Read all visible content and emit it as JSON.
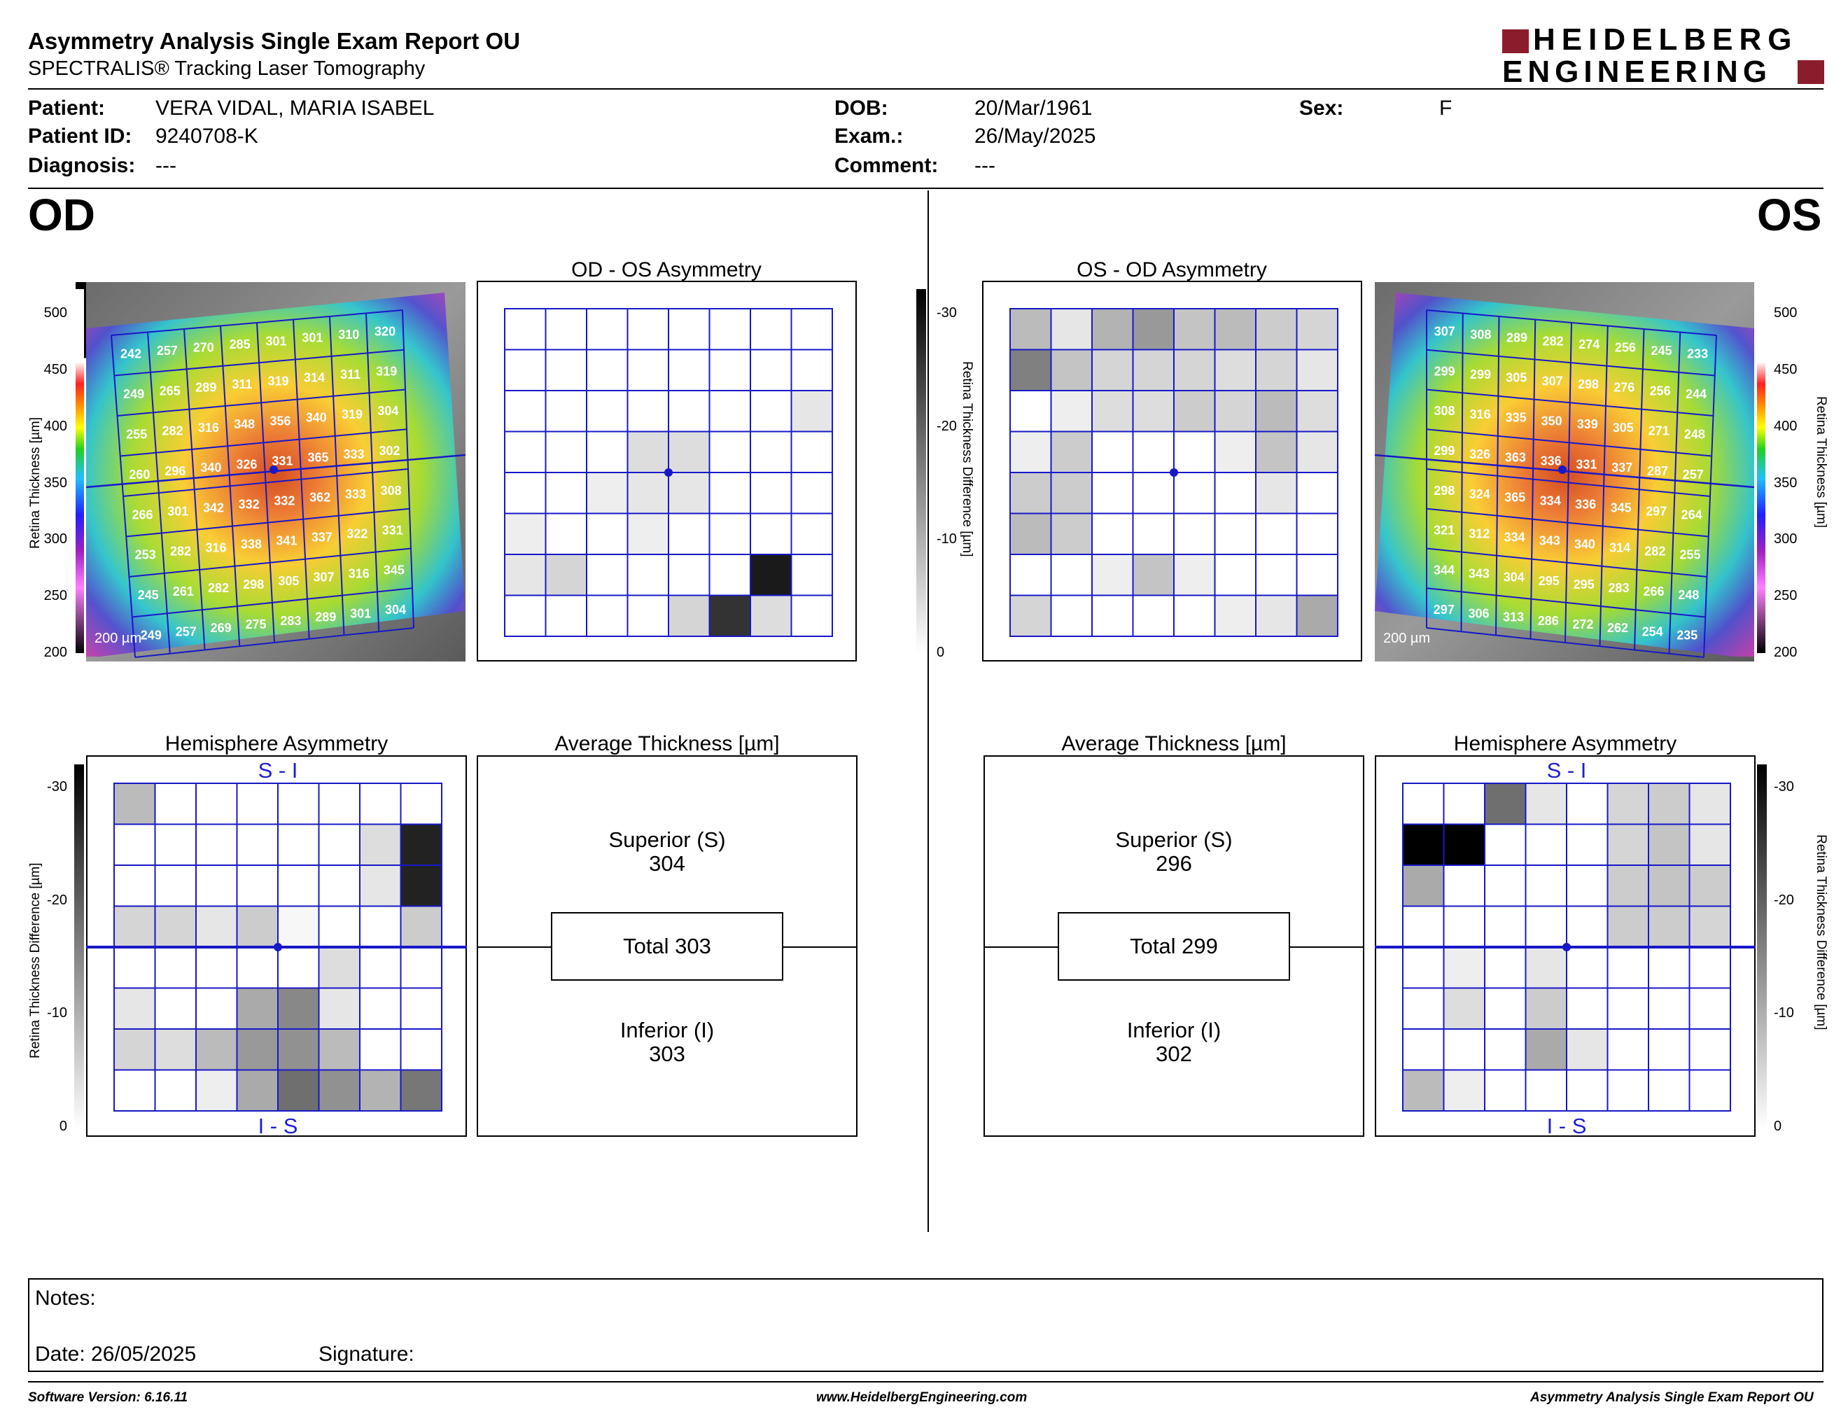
{
  "header": {
    "title": "Asymmetry Analysis Single Exam Report OU",
    "subtitle": "SPECTRALIS® Tracking Laser Tomography",
    "logo_line1": "HEIDELBERG",
    "logo_line2": "ENGINEERING",
    "logo_accent": "#8b1c2c"
  },
  "patient": {
    "patient_label": "Patient:",
    "patient_name": "VERA VIDAL, MARIA ISABEL",
    "id_label": "Patient ID:",
    "id_value": "9240708-K",
    "diag_label": "Diagnosis:",
    "diag_value": "---",
    "dob_label": "DOB:",
    "dob_value": "20/Mar/1961",
    "exam_label": "Exam.:",
    "exam_value": "26/May/2025",
    "comment_label": "Comment:",
    "comment_value": "---",
    "sex_label": "Sex:",
    "sex_value": "F"
  },
  "od": {
    "eye_label": "OD",
    "asym_title": "OD - OS Asymmetry",
    "hemi_title": "Hemisphere Asymmetry",
    "avg_title": "Average Thickness [µm]",
    "superior_label": "Superior (S)",
    "superior_value": "304",
    "total_label": "Total 303",
    "inferior_label": "Inferior (I)",
    "inferior_value": "303",
    "scale_label": "200 µm",
    "hemi_top": "S - I",
    "hemi_bottom": "I - S",
    "thickness_grid": [
      [
        242,
        257,
        270,
        285,
        301,
        301,
        310,
        320
      ],
      [
        249,
        265,
        289,
        311,
        319,
        314,
        311,
        319
      ],
      [
        255,
        282,
        316,
        348,
        356,
        340,
        319,
        304
      ],
      [
        260,
        296,
        340,
        326,
        331,
        365,
        333,
        302
      ],
      [
        266,
        301,
        342,
        332,
        332,
        362,
        333,
        308
      ],
      [
        253,
        282,
        316,
        338,
        341,
        337,
        322,
        331
      ],
      [
        245,
        261,
        282,
        298,
        305,
        307,
        316,
        345
      ],
      [
        249,
        257,
        269,
        275,
        283,
        289,
        301,
        304
      ]
    ],
    "asym_grid": [
      [
        0,
        0,
        0,
        0,
        0,
        0,
        0,
        0
      ],
      [
        0,
        0,
        0,
        0,
        0,
        0,
        0,
        0
      ],
      [
        0,
        0,
        0,
        0,
        0,
        0,
        0,
        3
      ],
      [
        0,
        0,
        0,
        4,
        4,
        0,
        0,
        0
      ],
      [
        0,
        0,
        2,
        3,
        3,
        0,
        0,
        0
      ],
      [
        2,
        0,
        0,
        2,
        0,
        0,
        0,
        0
      ],
      [
        3,
        5,
        0,
        0,
        0,
        0,
        27,
        0
      ],
      [
        0,
        0,
        0,
        0,
        5,
        24,
        4,
        0
      ]
    ],
    "hemi_grid": [
      [
        8,
        0,
        0,
        0,
        0,
        0,
        0,
        0
      ],
      [
        0,
        0,
        0,
        0,
        0,
        0,
        4,
        26
      ],
      [
        0,
        0,
        0,
        0,
        0,
        0,
        3,
        26
      ],
      [
        5,
        5,
        3,
        6,
        1,
        0,
        0,
        6
      ],
      [
        0,
        0,
        0,
        0,
        0,
        4,
        0,
        0
      ],
      [
        3,
        0,
        0,
        10,
        14,
        3,
        0,
        0
      ],
      [
        5,
        4,
        8,
        12,
        13,
        8,
        0,
        0
      ],
      [
        0,
        0,
        2,
        10,
        17,
        13,
        9,
        16
      ]
    ]
  },
  "os": {
    "eye_label": "OS",
    "asym_title": "OS - OD Asymmetry",
    "hemi_title": "Hemisphere Asymmetry",
    "avg_title": "Average Thickness [µm]",
    "superior_label": "Superior (S)",
    "superior_value": "296",
    "total_label": "Total 299",
    "inferior_label": "Inferior (I)",
    "inferior_value": "302",
    "scale_label": "200 µm",
    "hemi_top": "S - I",
    "hemi_bottom": "I - S",
    "thickness_grid": [
      [
        307,
        308,
        289,
        282,
        274,
        256,
        245,
        233
      ],
      [
        299,
        299,
        305,
        307,
        298,
        276,
        256,
        244
      ],
      [
        308,
        316,
        335,
        350,
        339,
        305,
        271,
        248
      ],
      [
        299,
        326,
        363,
        336,
        331,
        337,
        287,
        257
      ],
      [
        298,
        324,
        365,
        334,
        336,
        345,
        297,
        264
      ],
      [
        321,
        312,
        334,
        343,
        340,
        314,
        282,
        255
      ],
      [
        344,
        343,
        304,
        295,
        295,
        283,
        266,
        248
      ],
      [
        297,
        306,
        313,
        286,
        272,
        262,
        254,
        235
      ]
    ],
    "asym_grid": [
      [
        8,
        3,
        9,
        12,
        7,
        8,
        6,
        5
      ],
      [
        15,
        7,
        5,
        5,
        5,
        4,
        5,
        3
      ],
      [
        0,
        2,
        4,
        4,
        6,
        5,
        8,
        4
      ],
      [
        2,
        6,
        0,
        0,
        0,
        2,
        7,
        3
      ],
      [
        6,
        6,
        0,
        0,
        0,
        0,
        3,
        0
      ],
      [
        8,
        6,
        0,
        0,
        0,
        0,
        0,
        0
      ],
      [
        0,
        0,
        2,
        7,
        2,
        0,
        0,
        0
      ],
      [
        5,
        0,
        0,
        0,
        0,
        2,
        3,
        10
      ]
    ],
    "hemi_grid": [
      [
        0,
        0,
        17,
        3,
        0,
        5,
        6,
        3
      ],
      [
        30,
        30,
        0,
        0,
        0,
        5,
        7,
        3
      ],
      [
        10,
        0,
        0,
        0,
        0,
        6,
        7,
        6
      ],
      [
        0,
        0,
        0,
        0,
        0,
        6,
        6,
        5
      ],
      [
        0,
        2,
        0,
        3,
        0,
        0,
        0,
        0
      ],
      [
        0,
        4,
        0,
        6,
        0,
        0,
        0,
        0
      ],
      [
        0,
        0,
        0,
        10,
        3,
        0,
        0,
        0
      ],
      [
        8,
        2,
        0,
        0,
        0,
        0,
        0,
        0
      ]
    ]
  },
  "scales": {
    "thickness_ticks": [
      "500",
      "450",
      "400",
      "350",
      "300",
      "250",
      "200"
    ],
    "thickness_label": "Retina  Thickness [µm]",
    "diff_ticks": [
      "-30",
      "-20",
      "-10",
      "0"
    ],
    "diff_label": "Retina Thickness Difference [µm]"
  },
  "notes": {
    "notes_label": "Notes:",
    "date_label": "Date: 26/05/2025",
    "signature_label": "Signature:"
  },
  "footer": {
    "software": "Software Version: 6.16.11",
    "website": "www.HeidelbergEngineering.com",
    "report": "Asymmetry Analysis Single Exam Report OU"
  }
}
